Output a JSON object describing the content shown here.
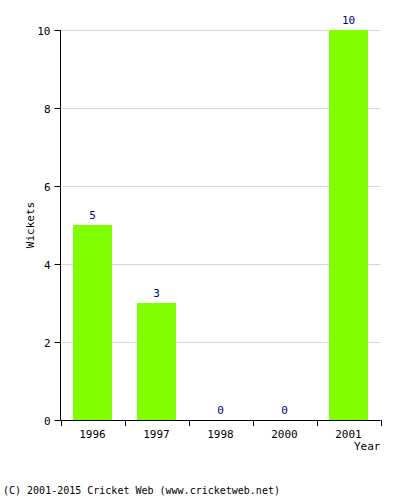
{
  "chart_data": {
    "type": "bar",
    "categories": [
      "1996",
      "1997",
      "1998",
      "2000",
      "2001"
    ],
    "values": [
      5,
      3,
      0,
      0,
      10
    ],
    "color": "#80ff00",
    "ylim": [
      0,
      10
    ],
    "yticks": [
      0,
      2,
      4,
      6,
      8,
      10
    ],
    "grid": true,
    "data_labels": true,
    "x_label": "Year",
    "y_label": "Wickets",
    "annotations": [
      "(C) 2001-2015 Cricket Web (www.cricketweb.net)"
    ]
  }
}
